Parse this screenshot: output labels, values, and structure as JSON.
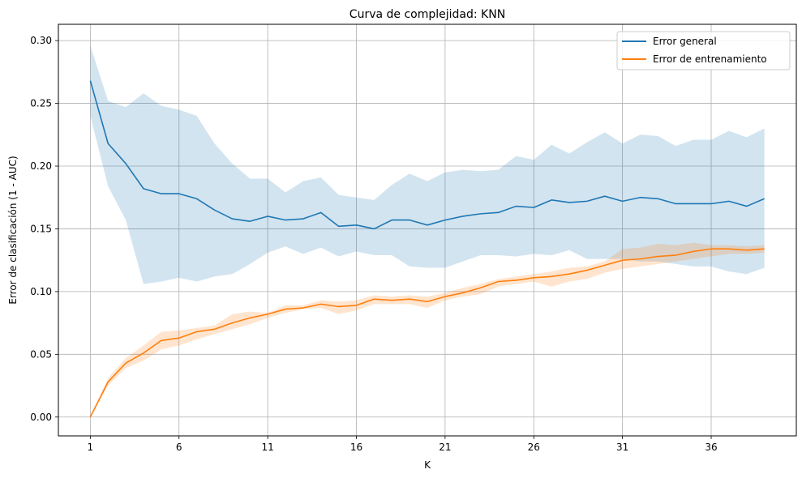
{
  "chart_data": {
    "type": "line",
    "title": "Curva de complejidad: KNN",
    "xlabel": "K",
    "ylabel": "Error de clasificación (1 - AUC)",
    "xlim": [
      -0.8,
      40.8
    ],
    "ylim": [
      -0.015,
      0.313
    ],
    "grid": true,
    "legend_position": "top-right",
    "xticks": [
      1,
      6,
      11,
      16,
      21,
      26,
      31,
      36
    ],
    "yticks": [
      0.0,
      0.05,
      0.1,
      0.15,
      0.2,
      0.25,
      0.3
    ],
    "ytick_labels": [
      "0.00",
      "0.05",
      "0.10",
      "0.15",
      "0.20",
      "0.25",
      "0.30"
    ],
    "x": [
      1,
      2,
      3,
      4,
      5,
      6,
      7,
      8,
      9,
      10,
      11,
      12,
      13,
      14,
      15,
      16,
      17,
      18,
      19,
      20,
      21,
      22,
      23,
      24,
      25,
      26,
      27,
      28,
      29,
      30,
      31,
      32,
      33,
      34,
      35,
      36,
      37,
      38,
      39
    ],
    "series": [
      {
        "name": "Error general",
        "color": "#1f77b4",
        "values": [
          0.268,
          0.218,
          0.202,
          0.182,
          0.178,
          0.178,
          0.174,
          0.165,
          0.158,
          0.156,
          0.16,
          0.157,
          0.158,
          0.163,
          0.152,
          0.153,
          0.15,
          0.157,
          0.157,
          0.153,
          0.157,
          0.16,
          0.162,
          0.163,
          0.168,
          0.167,
          0.173,
          0.171,
          0.172,
          0.176,
          0.172,
          0.175,
          0.174,
          0.17,
          0.17,
          0.17,
          0.172,
          0.168,
          0.174
        ],
        "upper": [
          0.296,
          0.252,
          0.247,
          0.258,
          0.248,
          0.245,
          0.24,
          0.218,
          0.202,
          0.19,
          0.19,
          0.179,
          0.188,
          0.191,
          0.177,
          0.175,
          0.173,
          0.185,
          0.194,
          0.188,
          0.195,
          0.197,
          0.196,
          0.197,
          0.208,
          0.205,
          0.217,
          0.21,
          0.219,
          0.227,
          0.218,
          0.225,
          0.224,
          0.216,
          0.221,
          0.221,
          0.228,
          0.223,
          0.23
        ],
        "lower": [
          0.24,
          0.184,
          0.157,
          0.106,
          0.108,
          0.111,
          0.108,
          0.112,
          0.114,
          0.122,
          0.131,
          0.136,
          0.13,
          0.135,
          0.128,
          0.132,
          0.129,
          0.129,
          0.12,
          0.119,
          0.119,
          0.124,
          0.129,
          0.129,
          0.128,
          0.13,
          0.129,
          0.133,
          0.126,
          0.126,
          0.126,
          0.124,
          0.124,
          0.122,
          0.12,
          0.12,
          0.116,
          0.114,
          0.119
        ]
      },
      {
        "name": "Error de entrenamiento",
        "color": "#ff7f0e",
        "values": [
          0.0,
          0.028,
          0.043,
          0.051,
          0.061,
          0.063,
          0.068,
          0.07,
          0.075,
          0.079,
          0.082,
          0.086,
          0.087,
          0.09,
          0.088,
          0.089,
          0.094,
          0.093,
          0.094,
          0.092,
          0.096,
          0.099,
          0.103,
          0.108,
          0.109,
          0.111,
          0.112,
          0.114,
          0.117,
          0.121,
          0.125,
          0.126,
          0.128,
          0.129,
          0.132,
          0.134,
          0.134,
          0.133,
          0.134
        ],
        "upper": [
          0.0,
          0.031,
          0.047,
          0.057,
          0.068,
          0.069,
          0.071,
          0.073,
          0.082,
          0.084,
          0.083,
          0.089,
          0.089,
          0.093,
          0.092,
          0.093,
          0.097,
          0.096,
          0.097,
          0.096,
          0.099,
          0.103,
          0.106,
          0.11,
          0.112,
          0.114,
          0.116,
          0.119,
          0.12,
          0.124,
          0.134,
          0.135,
          0.138,
          0.137,
          0.139,
          0.137,
          0.137,
          0.136,
          0.137
        ],
        "lower": [
          0.0,
          0.025,
          0.039,
          0.045,
          0.054,
          0.057,
          0.062,
          0.066,
          0.07,
          0.074,
          0.079,
          0.083,
          0.086,
          0.087,
          0.082,
          0.085,
          0.09,
          0.09,
          0.09,
          0.087,
          0.093,
          0.096,
          0.098,
          0.104,
          0.106,
          0.108,
          0.104,
          0.108,
          0.11,
          0.115,
          0.118,
          0.12,
          0.122,
          0.124,
          0.126,
          0.128,
          0.13,
          0.13,
          0.131
        ]
      }
    ]
  }
}
